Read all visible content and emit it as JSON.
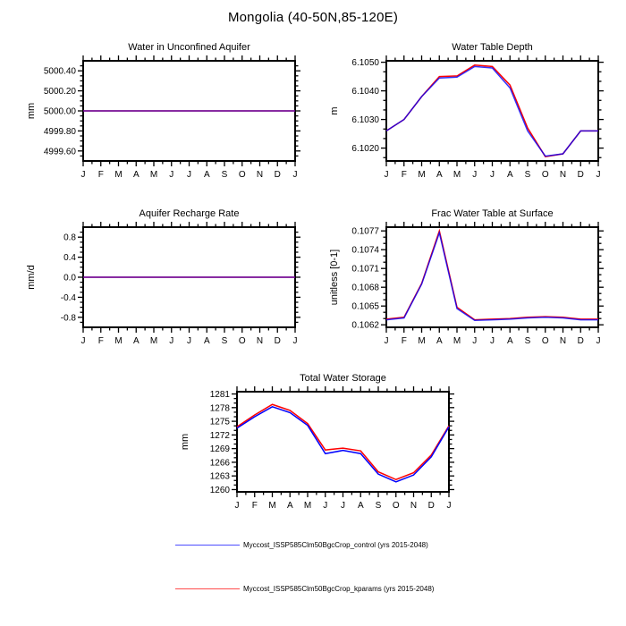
{
  "title": "Mongolia (40-50N,85-120E)",
  "legend": {
    "items": [
      {
        "label": "Myccost_ISSP585Clm50BgcCrop_control (yrs 2015-2048)",
        "color": "#0000ff"
      },
      {
        "label": "Myccost_ISSP585Clm50BgcCrop_kparams (yrs 2015-2048)",
        "color": "#ff0000"
      }
    ]
  },
  "chart_data": [
    {
      "id": "water-in-unconfined-aquifer",
      "type": "line",
      "title": "Water in Unconfined Aquifer",
      "ylabel": "mm",
      "ylim": [
        4999.5,
        5000.5
      ],
      "yticks": [
        {
          "label": "5000.40",
          "value": 5000.4
        },
        {
          "label": "5000.20",
          "value": 5000.2
        },
        {
          "label": "5000.00",
          "value": 5000.0
        },
        {
          "label": "4999.80",
          "value": 4999.8
        },
        {
          "label": "4999.60",
          "value": 4999.6
        }
      ],
      "y_minor_step": 0.05,
      "categories": [
        "J",
        "F",
        "M",
        "A",
        "M",
        "J",
        "J",
        "A",
        "S",
        "O",
        "N",
        "D",
        "J"
      ],
      "overlap": "full",
      "series": [
        {
          "name": "kparams",
          "color": "#ff0000",
          "values": [
            5000,
            5000,
            5000,
            5000,
            5000,
            5000,
            5000,
            5000,
            5000,
            5000,
            5000,
            5000,
            5000
          ]
        },
        {
          "name": "control",
          "color": "#0000ff",
          "values": [
            5000,
            5000,
            5000,
            5000,
            5000,
            5000,
            5000,
            5000,
            5000,
            5000,
            5000,
            5000,
            5000
          ]
        }
      ]
    },
    {
      "id": "water-table-depth",
      "type": "line",
      "title": "Water Table Depth",
      "ylabel": "m",
      "ylim": [
        6.10155,
        6.10505
      ],
      "yticks": [
        {
          "label": "6.1050",
          "value": 6.105
        },
        {
          "label": "6.1040",
          "value": 6.104
        },
        {
          "label": "6.1030",
          "value": 6.103
        },
        {
          "label": "6.1020",
          "value": 6.102
        }
      ],
      "y_minor_step": 0.00033333,
      "categories": [
        "J",
        "F",
        "M",
        "A",
        "M",
        "J",
        "J",
        "A",
        "S",
        "O",
        "N",
        "D",
        "J"
      ],
      "overlap": "near",
      "series": [
        {
          "name": "kparams",
          "color": "#ff0000",
          "values": [
            6.1026,
            6.103,
            6.1038,
            6.1045,
            6.10452,
            6.1049,
            6.10485,
            6.1042,
            6.1027,
            6.1017,
            6.1018,
            6.1026,
            6.1026
          ]
        },
        {
          "name": "control",
          "color": "#0000ff",
          "values": [
            6.1026,
            6.103,
            6.1038,
            6.10445,
            6.10448,
            6.10485,
            6.1048,
            6.1041,
            6.1026,
            6.10172,
            6.1018,
            6.1026,
            6.1026
          ]
        }
      ]
    },
    {
      "id": "aquifer-recharge-rate",
      "type": "line",
      "title": "Aquifer Recharge Rate",
      "ylabel": "mm/d",
      "ylim": [
        -1.0,
        1.0
      ],
      "yticks": [
        {
          "label": "0.8",
          "value": 0.8
        },
        {
          "label": "0.4",
          "value": 0.4
        },
        {
          "label": "0.0",
          "value": 0.0
        },
        {
          "label": "-0.4",
          "value": -0.4
        },
        {
          "label": "-0.8",
          "value": -0.8
        }
      ],
      "y_minor_step": 0.1,
      "categories": [
        "J",
        "F",
        "M",
        "A",
        "M",
        "J",
        "J",
        "A",
        "S",
        "O",
        "N",
        "D",
        "J"
      ],
      "overlap": "full",
      "series": [
        {
          "name": "kparams",
          "color": "#ff0000",
          "values": [
            0,
            0,
            0,
            0,
            0,
            0,
            0,
            0,
            0,
            0,
            0,
            0,
            0
          ]
        },
        {
          "name": "control",
          "color": "#0000ff",
          "values": [
            0,
            0,
            0,
            0,
            0,
            0,
            0,
            0,
            0,
            0,
            0,
            0,
            0
          ]
        }
      ]
    },
    {
      "id": "frac-water-table-at-surface",
      "type": "line",
      "title": "Frac Water Table at Surface",
      "ylabel": "unitless [0-1]",
      "ylim": [
        0.10616,
        0.10776
      ],
      "yticks": [
        {
          "label": "0.1077",
          "value": 0.1077
        },
        {
          "label": "0.1074",
          "value": 0.1074
        },
        {
          "label": "0.1071",
          "value": 0.1071
        },
        {
          "label": "0.1068",
          "value": 0.1068
        },
        {
          "label": "0.1065",
          "value": 0.1065
        },
        {
          "label": "0.1062",
          "value": 0.1062
        }
      ],
      "y_minor_step": 0.0001,
      "categories": [
        "J",
        "F",
        "M",
        "A",
        "M",
        "J",
        "J",
        "A",
        "S",
        "O",
        "N",
        "D",
        "J"
      ],
      "overlap": "near",
      "series": [
        {
          "name": "kparams",
          "color": "#ff0000",
          "values": [
            0.10629,
            0.10632,
            0.10686,
            0.1077,
            0.10648,
            0.10628,
            0.10629,
            0.1063,
            0.10632,
            0.10633,
            0.10632,
            0.10629,
            0.10629
          ]
        },
        {
          "name": "control",
          "color": "#0000ff",
          "values": [
            0.10628,
            0.10631,
            0.10685,
            0.10767,
            0.10646,
            0.10627,
            0.10628,
            0.10629,
            0.10631,
            0.10632,
            0.10631,
            0.10628,
            0.10628
          ]
        }
      ]
    },
    {
      "id": "total-water-storage",
      "type": "line",
      "title": "Total Water Storage",
      "ylabel": "mm",
      "ylim": [
        1259.5,
        1281.5
      ],
      "yticks": [
        {
          "label": "1281",
          "value": 1281
        },
        {
          "label": "1278",
          "value": 1278
        },
        {
          "label": "1275",
          "value": 1275
        },
        {
          "label": "1272",
          "value": 1272
        },
        {
          "label": "1269",
          "value": 1269
        },
        {
          "label": "1266",
          "value": 1266
        },
        {
          "label": "1263",
          "value": 1263
        },
        {
          "label": "1260",
          "value": 1260
        }
      ],
      "y_minor_step": 1,
      "categories": [
        "J",
        "F",
        "M",
        "A",
        "M",
        "J",
        "J",
        "A",
        "S",
        "O",
        "N",
        "D",
        "J"
      ],
      "overlap": "none",
      "series": [
        {
          "name": "kparams",
          "color": "#ff0000",
          "values": [
            1273.8,
            1276.4,
            1278.7,
            1277.4,
            1274.5,
            1268.7,
            1269.1,
            1268.5,
            1263.9,
            1262.2,
            1263.7,
            1267.6,
            1274.0
          ]
        },
        {
          "name": "control",
          "color": "#0000ff",
          "values": [
            1273.5,
            1276.0,
            1278.2,
            1276.9,
            1274.1,
            1267.9,
            1268.6,
            1267.9,
            1263.4,
            1261.7,
            1263.2,
            1267.2,
            1273.8
          ]
        }
      ]
    }
  ]
}
